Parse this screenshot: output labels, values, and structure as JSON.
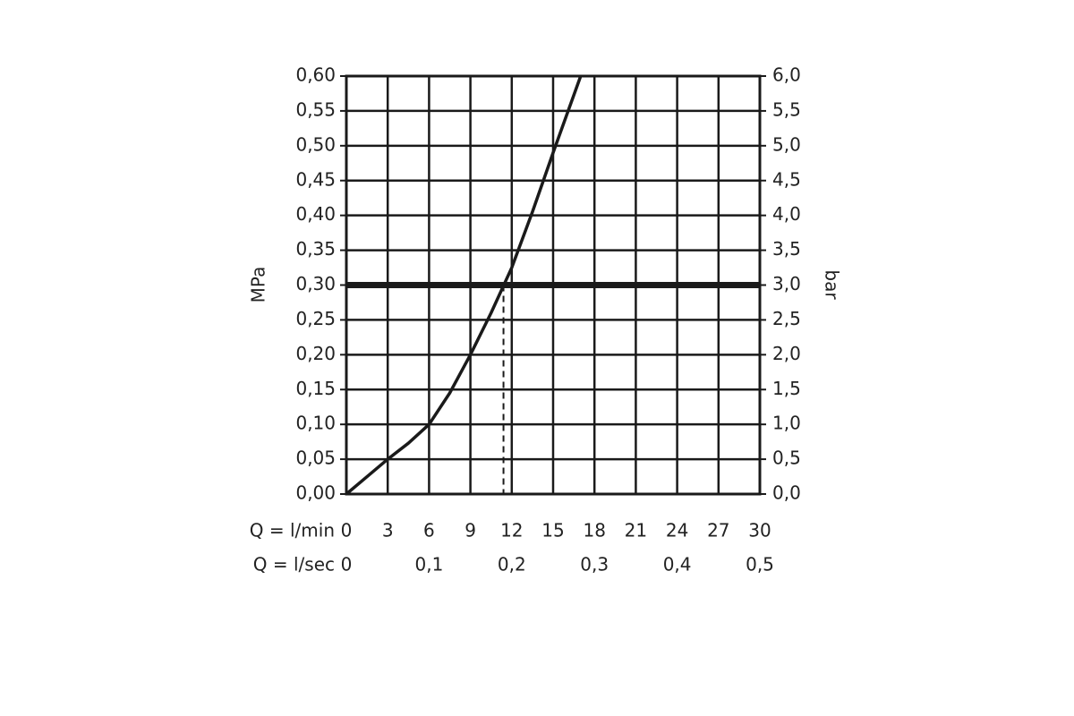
{
  "chart_data": {
    "type": "line",
    "xlabel": "Q = l/min",
    "x2label": "Q = l/sec",
    "ylabel": "MPa",
    "y2label": "bar",
    "x": [
      0,
      1.5,
      3,
      4.5,
      6,
      7.5,
      9,
      10.5,
      12,
      13.5,
      15,
      17
    ],
    "values": [
      0,
      0.025,
      0.05,
      0.073,
      0.1,
      0.145,
      0.2,
      0.26,
      0.325,
      0.405,
      0.49,
      0.6
    ],
    "color": "#1a1a1a",
    "reference_y": 0.3,
    "reference_x": 11.4,
    "xlim": [
      0,
      30
    ],
    "xticks": [
      0,
      3,
      6,
      9,
      12,
      15,
      18,
      21,
      24,
      27,
      30
    ],
    "x2lim": [
      0,
      0.5
    ],
    "x2ticks": [
      0,
      {
        "value": 0.1,
        "label": "0,1"
      },
      {
        "value": 0.2,
        "label": "0,2"
      },
      {
        "value": 0.3,
        "label": "0,3"
      },
      {
        "value": 0.4,
        "label": "0,4"
      },
      {
        "value": 0.5,
        "label": "0,5"
      }
    ],
    "ylim": [
      0,
      0.6
    ],
    "yticks": [
      {
        "value": 0,
        "label": "0,00"
      },
      {
        "value": 0.05,
        "label": "0,05"
      },
      {
        "value": 0.1,
        "label": "0,10"
      },
      {
        "value": 0.15,
        "label": "0,15"
      },
      {
        "value": 0.2,
        "label": "0,20"
      },
      {
        "value": 0.25,
        "label": "0,25"
      },
      {
        "value": 0.3,
        "label": "0,30"
      },
      {
        "value": 0.35,
        "label": "0,35"
      },
      {
        "value": 0.4,
        "label": "0,40"
      },
      {
        "value": 0.45,
        "label": "0,45"
      },
      {
        "value": 0.5,
        "label": "0,50"
      },
      {
        "value": 0.55,
        "label": "0,55"
      },
      {
        "value": 0.6,
        "label": "0,60"
      }
    ],
    "y2lim": [
      0,
      6
    ],
    "y2ticks": [
      {
        "value": 0,
        "label": "0,0"
      },
      {
        "value": 0.5,
        "label": "0,5"
      },
      {
        "value": 1,
        "label": "1,0"
      },
      {
        "value": 1.5,
        "label": "1,5"
      },
      {
        "value": 2,
        "label": "2,0"
      },
      {
        "value": 2.5,
        "label": "2,5"
      },
      {
        "value": 3,
        "label": "3,0"
      },
      {
        "value": 3.5,
        "label": "3,5"
      },
      {
        "value": 4,
        "label": "4,0"
      },
      {
        "value": 4.5,
        "label": "4,5"
      },
      {
        "value": 5,
        "label": "5,0"
      },
      {
        "value": 5.5,
        "label": "5,5"
      },
      {
        "value": 6,
        "label": "6,0"
      }
    ],
    "grid": true
  }
}
